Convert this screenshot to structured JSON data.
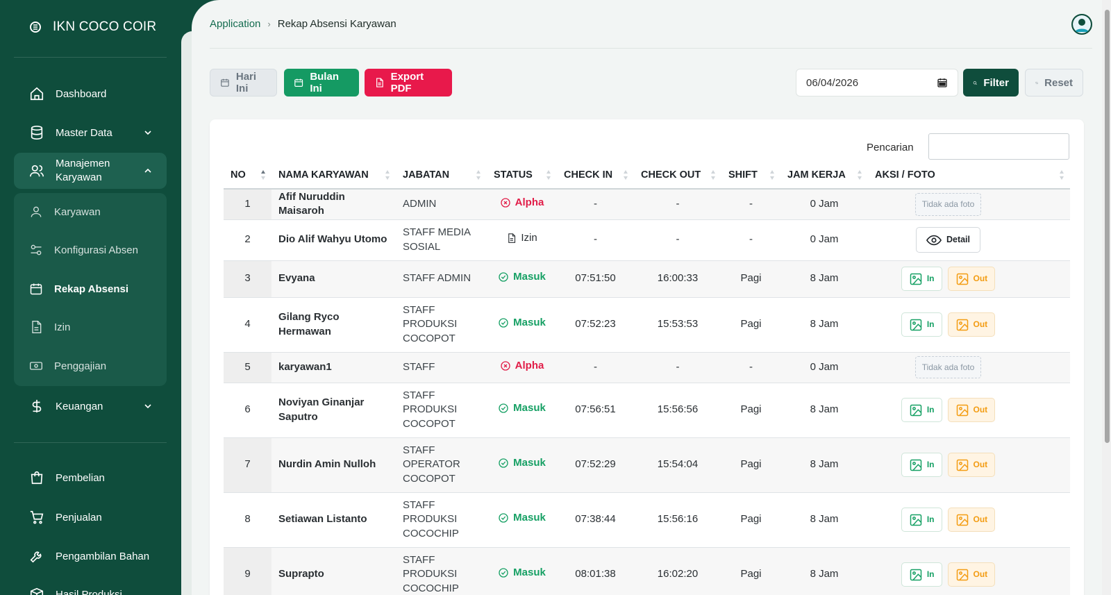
{
  "sidebar": {
    "brand": "IKN COCO COIR",
    "items": [
      {
        "label": "Dashboard",
        "icon": "home-icon"
      },
      {
        "label": "Master Data",
        "icon": "database-icon"
      },
      {
        "label": "Manajemen Karyawan",
        "icon": "users-icon"
      },
      {
        "label": "Keuangan",
        "icon": "dollar-icon"
      },
      {
        "label": "Pembelian",
        "icon": "shopping-bag-icon"
      },
      {
        "label": "Penjualan",
        "icon": "cart-icon"
      },
      {
        "label": "Pengambilan Bahan",
        "icon": "wrench-icon"
      },
      {
        "label": "Hasil Produksi",
        "icon": "box-icon"
      }
    ],
    "submenu": [
      {
        "label": "Karyawan",
        "icon": "user-icon"
      },
      {
        "label": "Konfigurasi Absen",
        "icon": "sliders-icon"
      },
      {
        "label": "Rekap Absensi",
        "icon": "calendar-icon",
        "active": true
      },
      {
        "label": "Izin",
        "icon": "file-icon"
      },
      {
        "label": "Penggajian",
        "icon": "money-icon"
      }
    ]
  },
  "breadcrumb": {
    "link": "Application",
    "current": "Rekap Absensi Karyawan"
  },
  "toolbar": {
    "today": "Hari Ini",
    "month": "Bulan Ini",
    "pdf": "Export PDF",
    "date": "06/04/2026",
    "filter": "Filter",
    "reset": "Reset"
  },
  "search": {
    "label": "Pencarian",
    "value": ""
  },
  "table": {
    "headers": [
      "NO",
      "NAMA KARYAWAN",
      "JABATAN",
      "STATUS",
      "CHECK IN",
      "CHECK OUT",
      "SHIFT",
      "JAM KERJA",
      "AKSI / FOTO"
    ],
    "no_photo": "Tidak ada foto",
    "detail": "Detail",
    "in_label": "In",
    "out_label": "Out",
    "rows": [
      {
        "no": "1",
        "name": "Afif Nuruddin Maisaroh",
        "jabatan": "ADMIN",
        "status": "Alpha",
        "in": "-",
        "out": "-",
        "shift": "-",
        "jam": "0 Jam",
        "aksi": "none"
      },
      {
        "no": "2",
        "name": "Dio Alif Wahyu Utomo",
        "jabatan": "STAFF MEDIA SOSIAL",
        "status": "Izin",
        "in": "-",
        "out": "-",
        "shift": "-",
        "jam": "0 Jam",
        "aksi": "detail"
      },
      {
        "no": "3",
        "name": "Evyana",
        "jabatan": "STAFF ADMIN",
        "status": "Masuk",
        "in": "07:51:50",
        "out": "16:00:33",
        "shift": "Pagi",
        "jam": "8 Jam",
        "aksi": "photos"
      },
      {
        "no": "4",
        "name": "Gilang Ryco Hermawan",
        "jabatan": "STAFF PRODUKSI COCOPOT",
        "status": "Masuk",
        "in": "07:52:23",
        "out": "15:53:53",
        "shift": "Pagi",
        "jam": "8 Jam",
        "aksi": "photos"
      },
      {
        "no": "5",
        "name": "karyawan1",
        "jabatan": "STAFF",
        "status": "Alpha",
        "in": "-",
        "out": "-",
        "shift": "-",
        "jam": "0 Jam",
        "aksi": "none"
      },
      {
        "no": "6",
        "name": "Noviyan Ginanjar Saputro",
        "jabatan": "STAFF PRODUKSI COCOPOT",
        "status": "Masuk",
        "in": "07:56:51",
        "out": "15:56:56",
        "shift": "Pagi",
        "jam": "8 Jam",
        "aksi": "photos"
      },
      {
        "no": "7",
        "name": "Nurdin Amin Nulloh",
        "jabatan": "STAFF OPERATOR COCOPOT",
        "status": "Masuk",
        "in": "07:52:29",
        "out": "15:54:04",
        "shift": "Pagi",
        "jam": "8 Jam",
        "aksi": "photos"
      },
      {
        "no": "8",
        "name": "Setiawan Listanto",
        "jabatan": "STAFF PRODUKSI COCOCHIP",
        "status": "Masuk",
        "in": "07:38:44",
        "out": "15:56:16",
        "shift": "Pagi",
        "jam": "8 Jam",
        "aksi": "photos"
      },
      {
        "no": "9",
        "name": "Suprapto",
        "jabatan": "STAFF PRODUKSI COCOCHIP",
        "status": "Masuk",
        "in": "08:01:38",
        "out": "16:02:20",
        "shift": "Pagi",
        "jam": "8 Jam",
        "aksi": "photos"
      }
    ]
  },
  "colors": {
    "sidebar": "#0f4d3c",
    "accent": "#159a63",
    "danger": "#e8194b",
    "warning": "#f39c12"
  }
}
